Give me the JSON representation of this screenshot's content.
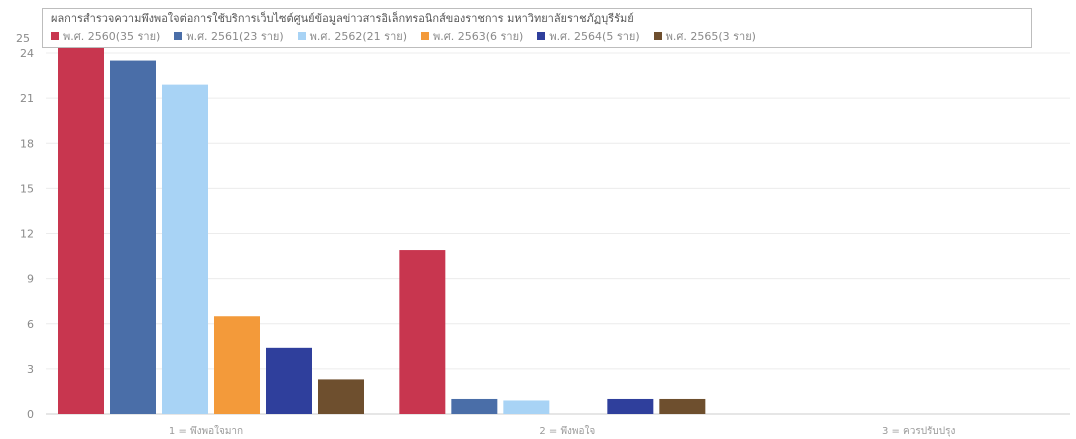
{
  "chart_data": {
    "type": "bar",
    "title": "ผลการสำรวจความพึงพอใจต่อการใช้บริการเว็บไซต์ศูนย์ข้อมูลข่าวสารอิเล็กทรอนิกส์ของราชการ มหาวิทยาลัยราชภัฏบุรีรัมย์",
    "categories": [
      "1 = พึงพอใจมาก",
      "2 = พึงพอใจ",
      "3 = ควรปรับปรุง"
    ],
    "ylim": [
      0,
      25
    ],
    "yticks": [
      0,
      3,
      6,
      9,
      12,
      15,
      18,
      21,
      24
    ],
    "ytick_labels": [
      "0",
      "3",
      "6",
      "9",
      "12",
      "15",
      "18",
      "21",
      "24"
    ],
    "top_label": "25",
    "series": [
      {
        "name": "พ.ศ. 2560(35 ราย)",
        "color": "#c8364f",
        "values": [
          24.8,
          10.9,
          0
        ]
      },
      {
        "name": "พ.ศ. 2561(23 ราย)",
        "color": "#4a6ea8",
        "values": [
          23.5,
          1,
          0
        ]
      },
      {
        "name": "พ.ศ. 2562(21 ราย)",
        "color": "#a8d3f5",
        "values": [
          21.9,
          0.9,
          0
        ]
      },
      {
        "name": "พ.ศ. 2563(6 ราย)",
        "color": "#f39a3a",
        "values": [
          6.5,
          0,
          0
        ]
      },
      {
        "name": "พ.ศ. 2564(5 ราย)",
        "color": "#2f3f9c",
        "values": [
          4.4,
          1,
          0
        ]
      },
      {
        "name": "พ.ศ. 2565(3 ราย)",
        "color": "#6e4f2e",
        "values": [
          2.3,
          1,
          0
        ]
      }
    ],
    "grid": true,
    "legend_position": "top"
  }
}
